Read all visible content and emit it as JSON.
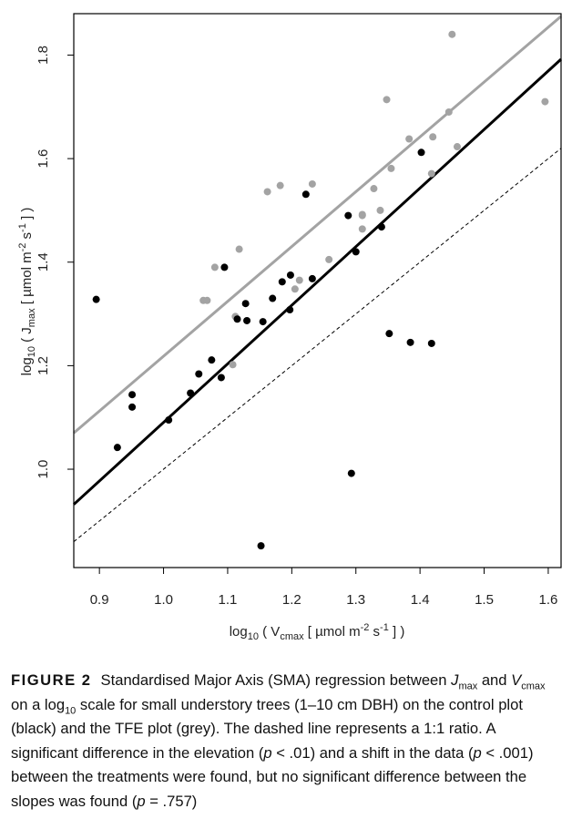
{
  "chart_data": {
    "type": "scatter",
    "xlabel": "log10 ( Vcmax [ µmol m-2 s-1 ] )",
    "ylabel": "log10 ( Jmax [ µmol m-2 s-1 ] )",
    "xlim": [
      0.86,
      1.62
    ],
    "ylim": [
      0.81,
      1.88
    ],
    "x_ticks": [
      "0.9",
      "1.0",
      "1.1",
      "1.2",
      "1.3",
      "1.4",
      "1.5",
      "1.6"
    ],
    "y_ticks": [
      "1.0",
      "1.2",
      "1.4",
      "1.6",
      "1.8"
    ],
    "grid": false,
    "colors": {
      "control": "#000000",
      "tfe": "#a3a3a3",
      "one_to_one": "#000000"
    },
    "series": [
      {
        "color": "#000000",
        "points": [
          [
            0.895,
            1.328
          ],
          [
            0.928,
            1.042
          ],
          [
            0.951,
            1.144
          ],
          [
            0.951,
            1.12
          ],
          [
            1.008,
            1.095
          ],
          [
            1.042,
            1.147
          ],
          [
            1.055,
            1.184
          ],
          [
            1.075,
            1.211
          ],
          [
            1.09,
            1.177
          ],
          [
            1.095,
            1.39
          ],
          [
            1.115,
            1.29
          ],
          [
            1.128,
            1.32
          ],
          [
            1.13,
            1.287
          ],
          [
            1.155,
            1.285
          ],
          [
            1.17,
            1.33
          ],
          [
            1.185,
            1.362
          ],
          [
            1.197,
            1.308
          ],
          [
            1.198,
            1.375
          ],
          [
            1.222,
            1.531
          ],
          [
            1.232,
            1.368
          ],
          [
            1.288,
            1.49
          ],
          [
            1.3,
            1.42
          ],
          [
            1.34,
            1.468
          ],
          [
            1.352,
            1.262
          ],
          [
            1.385,
            1.245
          ],
          [
            1.402,
            1.612
          ],
          [
            1.418,
            1.243
          ],
          [
            1.293,
            0.992
          ],
          [
            1.152,
            0.852
          ]
        ],
        "line": {
          "x": [
            0.86,
            1.62
          ],
          "y": [
            0.932,
            1.792
          ]
        }
      },
      {
        "color": "#a3a3a3",
        "points": [
          [
            1.062,
            1.326
          ],
          [
            1.068,
            1.326
          ],
          [
            1.08,
            1.39
          ],
          [
            1.108,
            1.202
          ],
          [
            1.118,
            1.425
          ],
          [
            1.112,
            1.295
          ],
          [
            1.162,
            1.536
          ],
          [
            1.182,
            1.548
          ],
          [
            1.205,
            1.348
          ],
          [
            1.212,
            1.365
          ],
          [
            1.232,
            1.551
          ],
          [
            1.258,
            1.405
          ],
          [
            1.31,
            1.492
          ],
          [
            1.31,
            1.49
          ],
          [
            1.31,
            1.464
          ],
          [
            1.328,
            1.542
          ],
          [
            1.338,
            1.5
          ],
          [
            1.348,
            1.714
          ],
          [
            1.355,
            1.581
          ],
          [
            1.383,
            1.638
          ],
          [
            1.418,
            1.571
          ],
          [
            1.42,
            1.642
          ],
          [
            1.445,
            1.69
          ],
          [
            1.45,
            1.84
          ],
          [
            1.458,
            1.623
          ],
          [
            1.595,
            1.71
          ]
        ],
        "line": {
          "x": [
            0.86,
            1.62
          ],
          "y": [
            1.07,
            1.875
          ]
        }
      },
      {
        "name": "1:1",
        "dashed": true,
        "line": {
          "x": [
            0.86,
            1.62
          ],
          "y": [
            0.86,
            1.62
          ]
        }
      }
    ]
  },
  "caption": {
    "label": "FIGURE 2",
    "p1": "Standardised Major Axis (SMA) regression between ",
    "jmax_sym": "J",
    "jmax_sub": "max",
    "p2": " and ",
    "vcmax_sym": "V",
    "vcmax_sub": "cmax",
    "p3": " on a log",
    "log_sub": "10",
    "p4": " scale for small understory trees (1–10 cm DBH) on the control plot (black) and the TFE plot (grey). The dashed line represents a 1:1 ratio. A significant difference in the elevation (",
    "p_sym1": "p",
    "p5": " < .01) and a shift in the data (",
    "p_sym2": "p",
    "p6": " < .001) between the treatments were found, but no significant difference between the slopes was found (",
    "p_sym3": "p",
    "p7": " = .757)"
  }
}
